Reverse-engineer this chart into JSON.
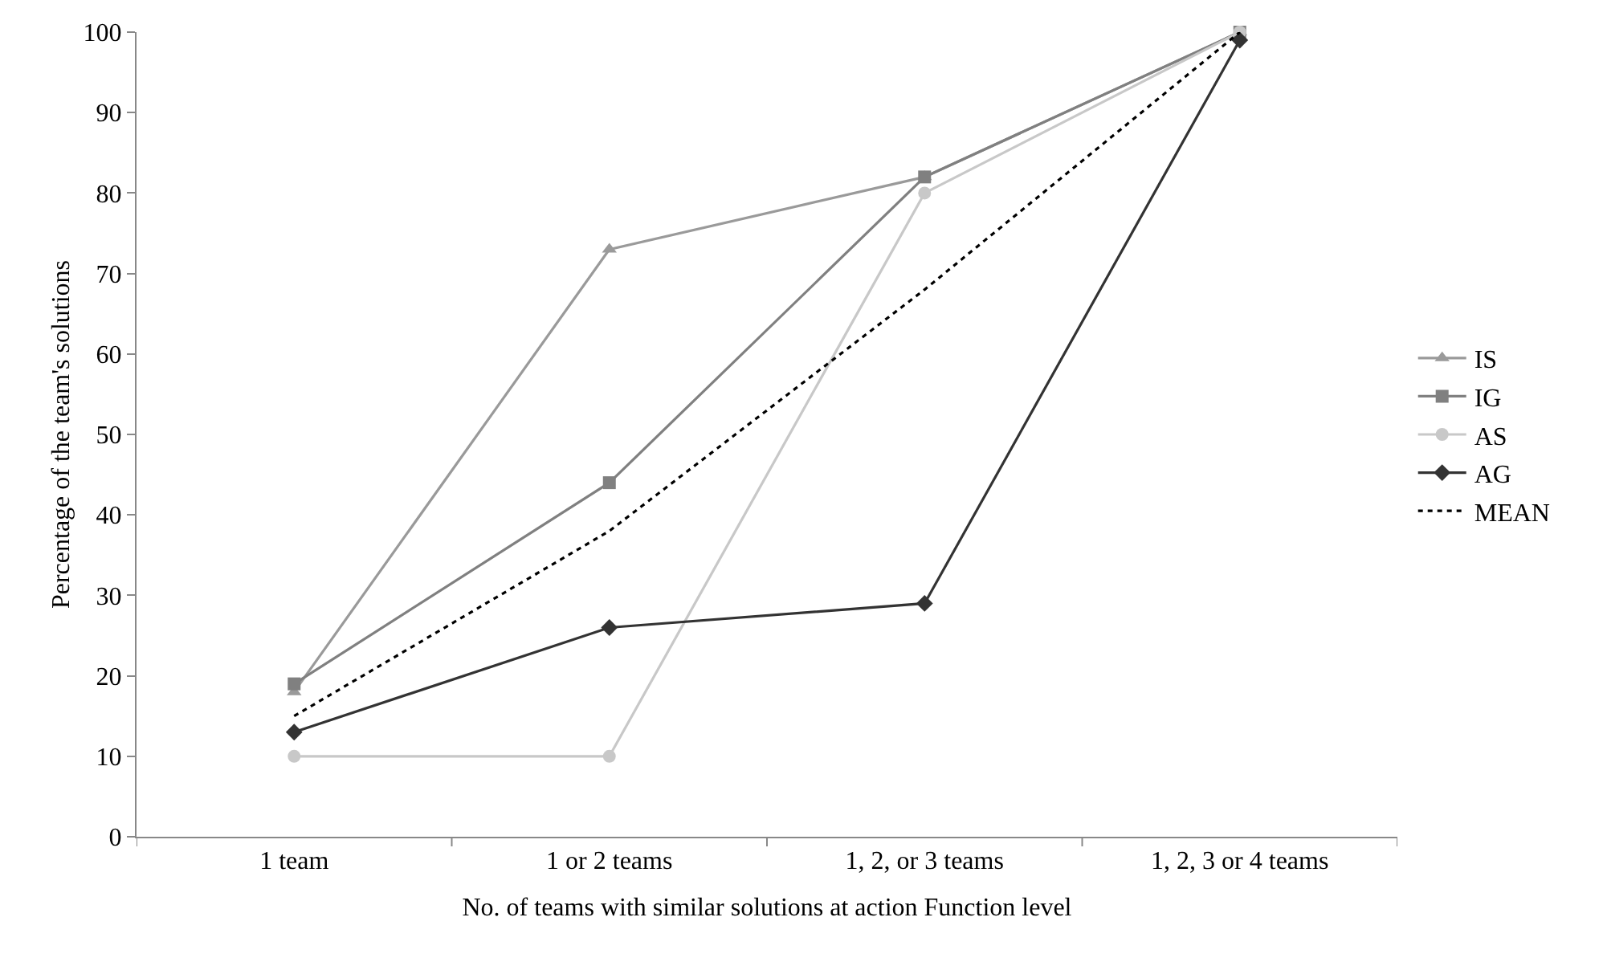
{
  "chart_data": {
    "type": "line",
    "xlabel": "No. of teams with similar solutions at action Function level",
    "ylabel": "Percentage of the team's solutions",
    "categories": [
      "1 team",
      "1 or 2 teams",
      "1, 2, or 3 teams",
      "1, 2, 3 or 4 teams"
    ],
    "series": [
      {
        "name": "IS",
        "color": "#9a9a9a",
        "marker": "triangle",
        "line_style": "solid",
        "values": [
          18,
          73,
          82,
          100
        ]
      },
      {
        "name": "IG",
        "color": "#808080",
        "marker": "square",
        "line_style": "solid",
        "values": [
          19,
          44,
          82,
          100
        ]
      },
      {
        "name": "AS",
        "color": "#c8c8c8",
        "marker": "circle",
        "line_style": "solid",
        "values": [
          10,
          10,
          80,
          100
        ]
      },
      {
        "name": "AG",
        "color": "#333333",
        "marker": "diamond",
        "line_style": "solid",
        "values": [
          13,
          26,
          29,
          99
        ]
      },
      {
        "name": "MEAN",
        "color": "#000000",
        "marker": "none",
        "line_style": "dotted",
        "values": [
          15,
          38,
          68,
          100
        ]
      }
    ],
    "ylim": [
      0,
      100
    ],
    "yticks": [
      0,
      10,
      20,
      30,
      40,
      50,
      60,
      70,
      80,
      90,
      100
    ],
    "grid": false,
    "legend": "right"
  }
}
